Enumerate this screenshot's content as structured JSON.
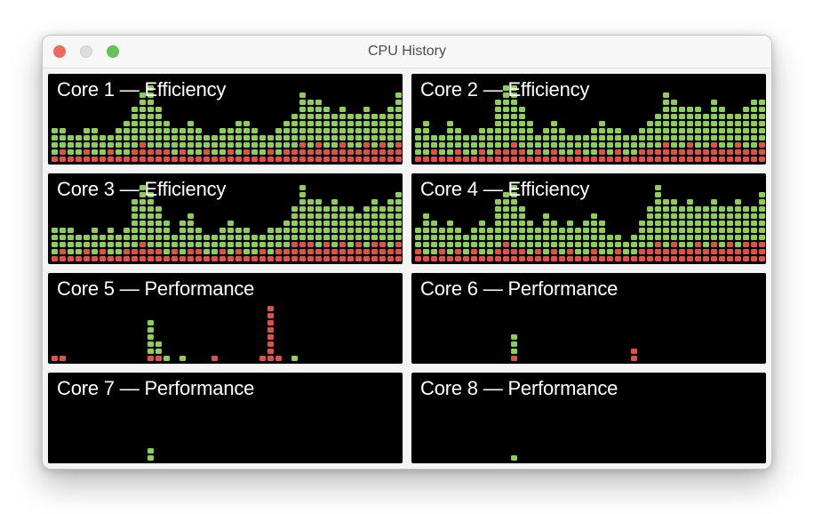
{
  "window": {
    "title": "CPU History",
    "traffic_lights": {
      "close": "close-button",
      "minimize": "minimize-button (disabled)",
      "zoom": "zoom-button"
    }
  },
  "colors": {
    "user_green": "#8ccf56",
    "system_red": "#e25045",
    "panel_bg": "#000000",
    "window_bg": "#f4f4f5",
    "titlebar_bg": "#f7f7f8",
    "title_text": "#4c4c4c",
    "panel_title_text": "#ffffff",
    "traffic_close": "#ec6a5e",
    "traffic_minimize": "#dedede",
    "traffic_zoom": "#61c454"
  },
  "chart_data": [
    {
      "type": "heatmap",
      "title": "Core 1 — Efficiency",
      "core": "Core 1",
      "cluster": "Efficiency",
      "columns": 44,
      "legend": {
        "green": "user load cells",
        "red": "system load cells"
      },
      "green": [
        4,
        3,
        3,
        3,
        3,
        4,
        3,
        2,
        4,
        5,
        6,
        7,
        9,
        6,
        4,
        4,
        3,
        5,
        4,
        2,
        3,
        4,
        3,
        5,
        4,
        4,
        3,
        2,
        4,
        4,
        5,
        7,
        7,
        6,
        6,
        5,
        5,
        5,
        5,
        5,
        5,
        4,
        6,
        7
      ],
      "red": [
        1,
        2,
        1,
        1,
        2,
        1,
        1,
        2,
        1,
        1,
        2,
        3,
        2,
        2,
        2,
        1,
        2,
        1,
        1,
        2,
        1,
        1,
        2,
        1,
        2,
        1,
        1,
        2,
        1,
        2,
        2,
        3,
        2,
        3,
        2,
        2,
        3,
        2,
        2,
        3,
        2,
        3,
        2,
        3
      ]
    },
    {
      "type": "heatmap",
      "title": "Core 2 — Efficiency",
      "core": "Core 2",
      "cluster": "Efficiency",
      "columns": 44,
      "legend": {
        "green": "user load cells",
        "red": "system load cells"
      },
      "green": [
        4,
        5,
        2,
        3,
        5,
        3,
        3,
        3,
        3,
        4,
        7,
        9,
        8,
        6,
        5,
        2,
        4,
        4,
        4,
        3,
        2,
        3,
        4,
        4,
        4,
        3,
        3,
        3,
        3,
        4,
        5,
        7,
        7,
        6,
        5,
        6,
        5,
        6,
        6,
        5,
        4,
        6,
        7,
        6
      ],
      "red": [
        1,
        1,
        2,
        1,
        1,
        2,
        1,
        1,
        2,
        1,
        2,
        2,
        3,
        2,
        1,
        2,
        1,
        2,
        1,
        1,
        2,
        1,
        1,
        2,
        1,
        2,
        1,
        1,
        2,
        2,
        2,
        3,
        2,
        2,
        3,
        2,
        2,
        3,
        2,
        2,
        3,
        2,
        2,
        3
      ]
    },
    {
      "type": "heatmap",
      "title": "Core 3 — Efficiency",
      "core": "Core 3",
      "cluster": "Efficiency",
      "columns": 44,
      "legend": {
        "green": "user load cells",
        "red": "system load cells"
      },
      "green": [
        4,
        3,
        4,
        3,
        2,
        4,
        2,
        4,
        3,
        3,
        7,
        8,
        8,
        6,
        5,
        2,
        5,
        5,
        3,
        3,
        3,
        3,
        5,
        3,
        4,
        3,
        2,
        4,
        3,
        4,
        5,
        8,
        6,
        7,
        5,
        7,
        5,
        6,
        4,
        6,
        6,
        5,
        7,
        7
      ],
      "red": [
        1,
        2,
        1,
        1,
        2,
        1,
        2,
        1,
        1,
        2,
        2,
        3,
        2,
        2,
        1,
        2,
        1,
        2,
        2,
        1,
        1,
        2,
        1,
        2,
        1,
        1,
        2,
        1,
        2,
        2,
        3,
        3,
        3,
        2,
        3,
        2,
        3,
        2,
        3,
        2,
        3,
        3,
        2,
        3
      ]
    },
    {
      "type": "heatmap",
      "title": "Core 4 — Efficiency",
      "core": "Core 4",
      "cluster": "Efficiency",
      "columns": 44,
      "legend": {
        "green": "user load cells",
        "red": "system load cells"
      },
      "green": [
        3,
        6,
        5,
        3,
        5,
        3,
        3,
        3,
        5,
        4,
        7,
        7,
        9,
        6,
        5,
        3,
        6,
        4,
        4,
        4,
        4,
        5,
        5,
        5,
        3,
        2,
        2,
        3,
        4,
        6,
        8,
        7,
        6,
        6,
        7,
        5,
        6,
        6,
        6,
        5,
        7,
        5,
        5,
        7
      ],
      "red": [
        2,
        1,
        1,
        2,
        1,
        2,
        1,
        2,
        1,
        1,
        2,
        3,
        2,
        2,
        1,
        2,
        1,
        2,
        1,
        2,
        1,
        1,
        2,
        1,
        1,
        2,
        1,
        1,
        2,
        2,
        3,
        2,
        3,
        2,
        2,
        3,
        2,
        3,
        2,
        3,
        2,
        3,
        3,
        3
      ]
    },
    {
      "type": "heatmap",
      "title": "Core 5 — Performance",
      "core": "Core 5",
      "cluster": "Performance",
      "columns": 44,
      "legend": {
        "green": "user load cells",
        "red": "system load cells"
      },
      "green": [
        0,
        0,
        0,
        0,
        0,
        0,
        0,
        0,
        0,
        0,
        0,
        0,
        5,
        2,
        1,
        0,
        1,
        0,
        0,
        0,
        0,
        0,
        0,
        0,
        0,
        0,
        0,
        0,
        0,
        0,
        1,
        0,
        0,
        0,
        0,
        0,
        0,
        0,
        0,
        0,
        0,
        0,
        0,
        0
      ],
      "red": [
        1,
        1,
        0,
        0,
        0,
        0,
        0,
        0,
        0,
        0,
        0,
        0,
        1,
        1,
        0,
        0,
        0,
        0,
        0,
        0,
        1,
        0,
        0,
        0,
        0,
        0,
        1,
        8,
        1,
        0,
        0,
        0,
        0,
        0,
        0,
        0,
        0,
        0,
        0,
        0,
        0,
        0,
        0,
        0
      ]
    },
    {
      "type": "heatmap",
      "title": "Core 6 — Performance",
      "core": "Core 6",
      "cluster": "Performance",
      "columns": 44,
      "legend": {
        "green": "user load cells",
        "red": "system load cells"
      },
      "green": [
        0,
        0,
        0,
        0,
        0,
        0,
        0,
        0,
        0,
        0,
        0,
        0,
        3,
        0,
        0,
        0,
        0,
        0,
        0,
        0,
        0,
        0,
        0,
        0,
        0,
        0,
        0,
        0,
        0,
        0,
        0,
        0,
        0,
        0,
        0,
        0,
        0,
        0,
        0,
        0,
        0,
        0,
        0,
        0
      ],
      "red": [
        0,
        0,
        0,
        0,
        0,
        0,
        0,
        0,
        0,
        0,
        0,
        0,
        1,
        0,
        0,
        0,
        0,
        0,
        0,
        0,
        0,
        0,
        0,
        0,
        0,
        0,
        0,
        2,
        0,
        0,
        0,
        0,
        0,
        0,
        0,
        0,
        0,
        0,
        0,
        0,
        0,
        0,
        0,
        0
      ]
    },
    {
      "type": "heatmap",
      "title": "Core 7 — Performance",
      "core": "Core 7",
      "cluster": "Performance",
      "columns": 44,
      "legend": {
        "green": "user load cells",
        "red": "system load cells"
      },
      "green": [
        0,
        0,
        0,
        0,
        0,
        0,
        0,
        0,
        0,
        0,
        0,
        0,
        2,
        0,
        0,
        0,
        0,
        0,
        0,
        0,
        0,
        0,
        0,
        0,
        0,
        0,
        0,
        0,
        0,
        0,
        0,
        0,
        0,
        0,
        0,
        0,
        0,
        0,
        0,
        0,
        0,
        0,
        0,
        0
      ],
      "red": [
        0,
        0,
        0,
        0,
        0,
        0,
        0,
        0,
        0,
        0,
        0,
        0,
        0,
        0,
        0,
        0,
        0,
        0,
        0,
        0,
        0,
        0,
        0,
        0,
        0,
        0,
        0,
        0,
        0,
        0,
        0,
        0,
        0,
        0,
        0,
        0,
        0,
        0,
        0,
        0,
        0,
        0,
        0,
        0
      ]
    },
    {
      "type": "heatmap",
      "title": "Core 8 — Performance",
      "core": "Core 8",
      "cluster": "Performance",
      "columns": 44,
      "legend": {
        "green": "user load cells",
        "red": "system load cells"
      },
      "green": [
        0,
        0,
        0,
        0,
        0,
        0,
        0,
        0,
        0,
        0,
        0,
        0,
        1,
        0,
        0,
        0,
        0,
        0,
        0,
        0,
        0,
        0,
        0,
        0,
        0,
        0,
        0,
        0,
        0,
        0,
        0,
        0,
        0,
        0,
        0,
        0,
        0,
        0,
        0,
        0,
        0,
        0,
        0,
        0
      ],
      "red": [
        0,
        0,
        0,
        0,
        0,
        0,
        0,
        0,
        0,
        0,
        0,
        0,
        0,
        0,
        0,
        0,
        0,
        0,
        0,
        0,
        0,
        0,
        0,
        0,
        0,
        0,
        0,
        0,
        0,
        0,
        0,
        0,
        0,
        0,
        0,
        0,
        0,
        0,
        0,
        0,
        0,
        0,
        0,
        0
      ]
    }
  ]
}
